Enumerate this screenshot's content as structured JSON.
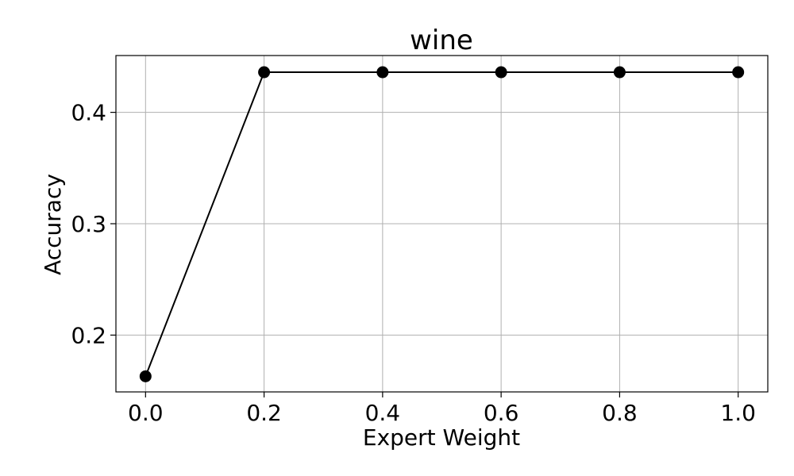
{
  "chart_data": {
    "type": "line",
    "title": "wine",
    "xlabel": "Expert Weight",
    "ylabel": "Accuracy",
    "xlim": [
      -0.05,
      1.05
    ],
    "ylim": [
      0.149,
      0.451
    ],
    "xticks": [
      0.0,
      0.2,
      0.4,
      0.6,
      0.8,
      1.0
    ],
    "xtick_labels": [
      "0.0",
      "0.2",
      "0.4",
      "0.6",
      "0.8",
      "1.0"
    ],
    "yticks": [
      0.2,
      0.3,
      0.4
    ],
    "ytick_labels": [
      "0.2",
      "0.3",
      "0.4"
    ],
    "grid": true,
    "series": [
      {
        "x": [
          0.0,
          0.2,
          0.4,
          0.6,
          0.8,
          1.0
        ],
        "y": [
          0.163,
          0.436,
          0.436,
          0.436,
          0.436,
          0.436
        ],
        "color": "#000000",
        "marker": "circle"
      }
    ]
  }
}
